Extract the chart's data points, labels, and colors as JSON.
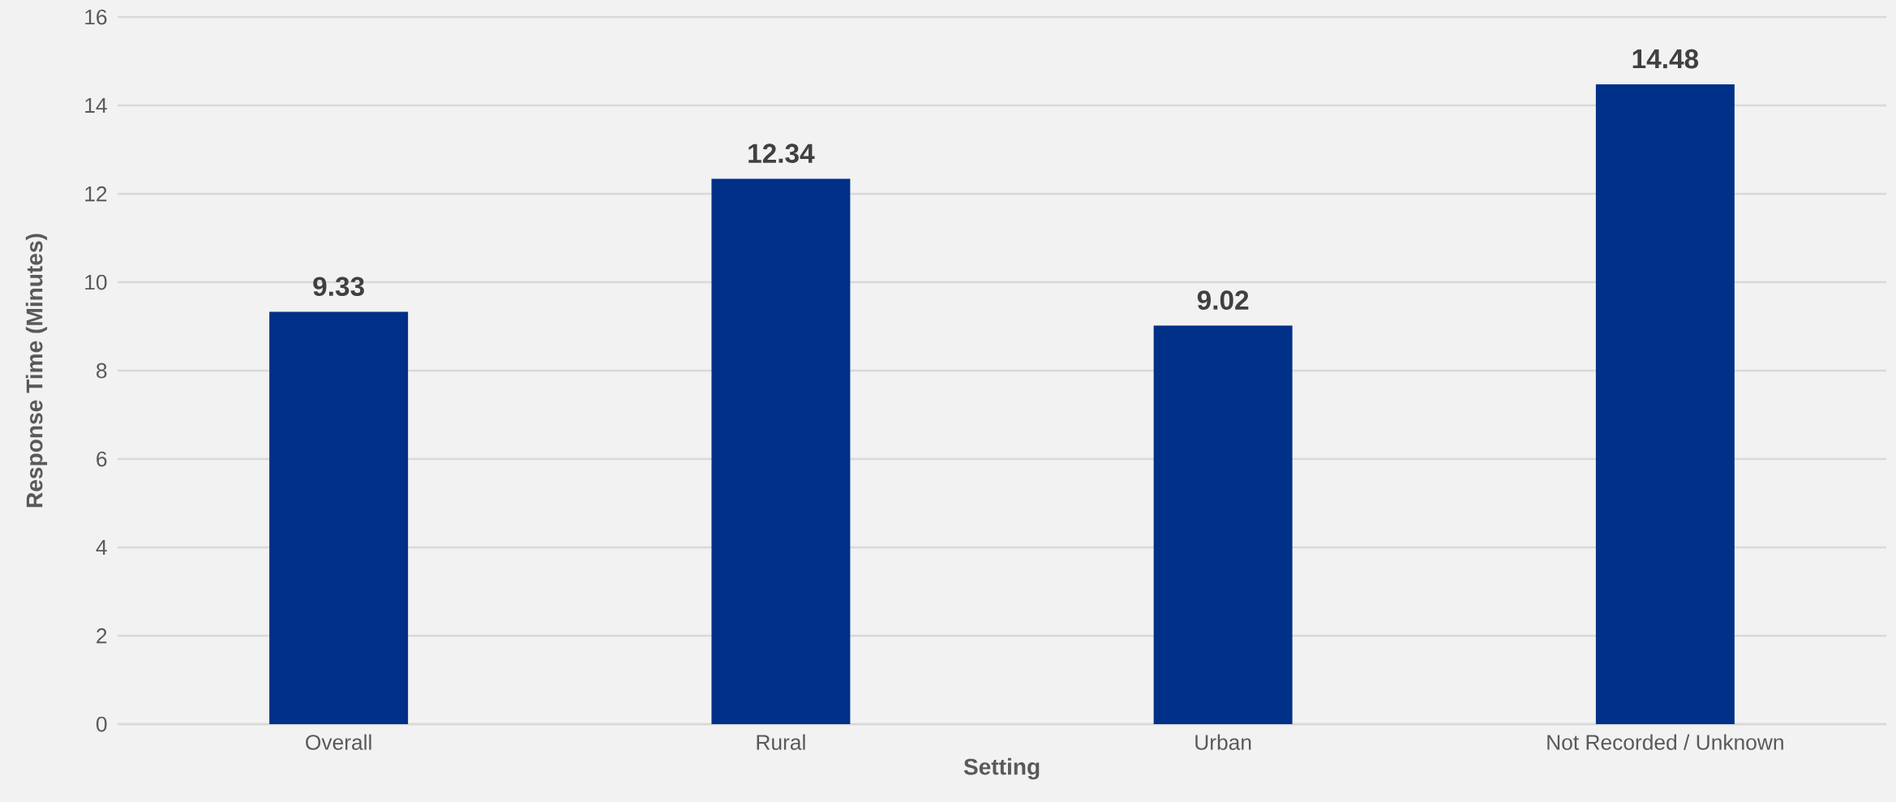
{
  "chart_data": {
    "type": "bar",
    "xlabel": "Setting",
    "ylabel": "Response Time (Minutes)",
    "categories": [
      "Overall",
      "Rural",
      "Urban",
      "Not Recorded / Unknown"
    ],
    "values": [
      9.33,
      12.34,
      9.02,
      14.48
    ],
    "color": "#003087",
    "ylim": [
      0,
      16
    ],
    "yticks": [
      0,
      2,
      4,
      6,
      8,
      10,
      12,
      14,
      16
    ],
    "grid": "y",
    "data_labels": true
  }
}
